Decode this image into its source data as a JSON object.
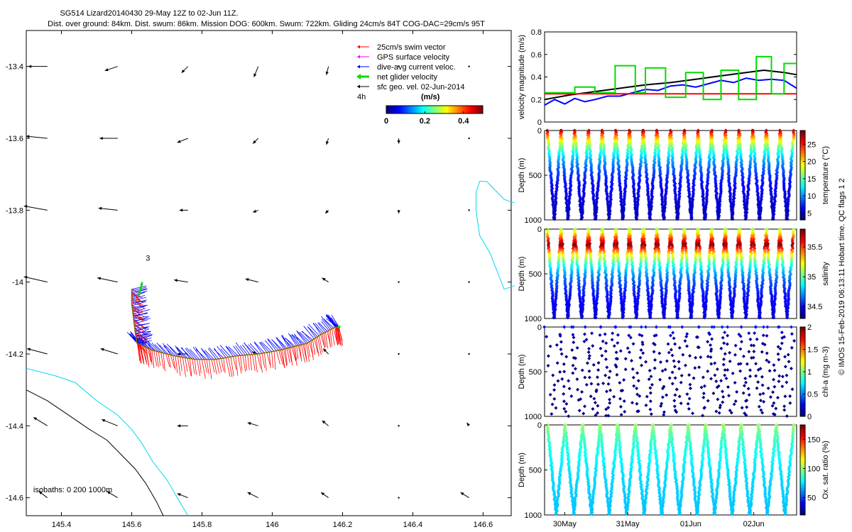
{
  "header": {
    "line1": "SG514 Lizard20140430 29-May 12Z to 02-Jun 11Z.",
    "line2": "Dist. over ground: 84km. Dist. swum: 86km. Mission DOG: 600km. Swum: 722km. Gliding 24cm/s 84T COG-DAC=29cm/s 95T"
  },
  "side_label": "© IMOS 15-Feb-2019 06:13:11 Hobart time. QC flags 1  2",
  "chart_data": [
    {
      "id": "map",
      "type": "scatter",
      "xlim": [
        145.3,
        146.68
      ],
      "ylim": [
        -14.65,
        -13.3
      ],
      "xticks": [
        145.4,
        145.6,
        145.8,
        146,
        146.2,
        146.4,
        146.6
      ],
      "xtick_labels": [
        "145.4",
        "145.6",
        "145.8",
        "146",
        "146.2",
        "146.4",
        "146.6"
      ],
      "yticks": [
        -13.4,
        -13.6,
        -13.8,
        -14,
        -14.2,
        -14.4,
        -14.6
      ],
      "ytick_labels": [
        "-13.4",
        "-13.6",
        "-13.8",
        "-14",
        "-14.2",
        "-14.4",
        "-14.6"
      ],
      "legend": {
        "placement": "top-right",
        "entries": [
          {
            "label": "25cm/s swim vector",
            "color": "#ff0000"
          },
          {
            "label": "GPS surface velocity",
            "color": "#ff00ff"
          },
          {
            "label": "dive-avg current veloc.",
            "color": "#0000ff"
          },
          {
            "label": "net glider velocity",
            "color": "#00dd00"
          },
          {
            "label": "sfc geo. vel. 02-Jun-2014",
            "color": "#000000"
          }
        ]
      },
      "colorbar": {
        "label": "(m/s)",
        "side_text": "4h",
        "ticks": [
          0,
          0.2,
          0.4
        ],
        "tick_labels": [
          "0",
          "0.2",
          "0.4"
        ],
        "range": [
          0,
          0.5
        ]
      },
      "annotations": [
        {
          "text": "3",
          "lon": 145.64,
          "lat": -13.94
        },
        {
          "text": "isobaths: 0   200  1000m",
          "lon": 145.32,
          "lat": -14.585
        }
      ],
      "track": [
        [
          145.6,
          -14.02
        ],
        [
          145.6,
          -14.06
        ],
        [
          145.605,
          -14.1
        ],
        [
          145.61,
          -14.14
        ],
        [
          145.615,
          -14.17
        ],
        [
          145.625,
          -14.175
        ],
        [
          145.66,
          -14.19
        ],
        [
          145.72,
          -14.205
        ],
        [
          145.78,
          -14.215
        ],
        [
          145.84,
          -14.215
        ],
        [
          145.9,
          -14.205
        ],
        [
          145.96,
          -14.2
        ],
        [
          146.02,
          -14.19
        ],
        [
          146.06,
          -14.18
        ],
        [
          146.1,
          -14.17
        ],
        [
          146.14,
          -14.145
        ],
        [
          146.18,
          -14.125
        ],
        [
          146.19,
          -14.125
        ]
      ],
      "isobath_0": [
        [
          145.3,
          -14.24
        ],
        [
          145.38,
          -14.26
        ],
        [
          145.44,
          -14.28
        ],
        [
          145.5,
          -14.33
        ],
        [
          145.56,
          -14.37
        ],
        [
          145.6,
          -14.41
        ],
        [
          145.63,
          -14.45
        ],
        [
          145.66,
          -14.5
        ],
        [
          145.7,
          -14.55
        ],
        [
          145.73,
          -14.6
        ],
        [
          145.76,
          -14.65
        ]
      ],
      "isobath_1000": [
        [
          145.3,
          -14.3
        ],
        [
          145.36,
          -14.33
        ],
        [
          145.42,
          -14.37
        ],
        [
          145.48,
          -14.41
        ],
        [
          145.53,
          -14.44
        ],
        [
          145.57,
          -14.48
        ],
        [
          145.61,
          -14.52
        ],
        [
          145.64,
          -14.56
        ],
        [
          145.67,
          -14.61
        ],
        [
          145.69,
          -14.65
        ]
      ],
      "coast": [
        [
          146.69,
          -13.78
        ],
        [
          146.66,
          -13.77
        ],
        [
          146.63,
          -13.74
        ],
        [
          146.61,
          -13.72
        ],
        [
          146.59,
          -13.72
        ],
        [
          146.58,
          -13.75
        ],
        [
          146.58,
          -13.8
        ],
        [
          146.59,
          -13.87
        ],
        [
          146.62,
          -13.92
        ],
        [
          146.64,
          -13.97
        ],
        [
          146.66,
          -14.02
        ],
        [
          146.69,
          -14.01
        ]
      ],
      "currents": [
        {
          "lon": 145.36,
          "lat": -13.4,
          "u": -0.18,
          "v": 0.0
        },
        {
          "lon": 145.56,
          "lat": -13.4,
          "u": -0.12,
          "v": -0.04
        },
        {
          "lon": 145.76,
          "lat": -13.4,
          "u": -0.06,
          "v": -0.06
        },
        {
          "lon": 145.96,
          "lat": -13.4,
          "u": -0.04,
          "v": -0.1
        },
        {
          "lon": 146.16,
          "lat": -13.4,
          "u": -0.02,
          "v": -0.08
        },
        {
          "lon": 146.36,
          "lat": -13.4,
          "u": 0.0,
          "v": 0.0
        },
        {
          "lon": 146.56,
          "lat": -13.4,
          "u": 0.0,
          "v": 0.0
        },
        {
          "lon": 145.36,
          "lat": -13.6,
          "u": -0.2,
          "v": 0.02
        },
        {
          "lon": 145.56,
          "lat": -13.6,
          "u": -0.17,
          "v": 0.0
        },
        {
          "lon": 145.76,
          "lat": -13.6,
          "u": -0.1,
          "v": -0.04
        },
        {
          "lon": 145.96,
          "lat": -13.6,
          "u": -0.05,
          "v": -0.05
        },
        {
          "lon": 146.16,
          "lat": -13.6,
          "u": -0.02,
          "v": -0.06
        },
        {
          "lon": 146.36,
          "lat": -13.6,
          "u": 0.0,
          "v": -0.05
        },
        {
          "lon": 146.56,
          "lat": -13.6,
          "u": 0.0,
          "v": 0.0
        },
        {
          "lon": 145.36,
          "lat": -13.8,
          "u": -0.22,
          "v": 0.04
        },
        {
          "lon": 145.56,
          "lat": -13.8,
          "u": -0.18,
          "v": 0.02
        },
        {
          "lon": 145.76,
          "lat": -13.8,
          "u": -0.08,
          "v": 0.0
        },
        {
          "lon": 145.96,
          "lat": -13.8,
          "u": -0.05,
          "v": -0.02
        },
        {
          "lon": 146.16,
          "lat": -13.8,
          "u": -0.03,
          "v": -0.03
        },
        {
          "lon": 146.36,
          "lat": -13.8,
          "u": 0.0,
          "v": -0.03
        },
        {
          "lon": 146.56,
          "lat": -13.8,
          "u": 0.0,
          "v": 0.0
        },
        {
          "lon": 145.36,
          "lat": -14.0,
          "u": -0.22,
          "v": 0.05
        },
        {
          "lon": 145.56,
          "lat": -14.0,
          "u": -0.19,
          "v": 0.04
        },
        {
          "lon": 145.76,
          "lat": -14.0,
          "u": -0.13,
          "v": 0.02
        },
        {
          "lon": 145.96,
          "lat": -14.0,
          "u": -0.12,
          "v": 0.03
        },
        {
          "lon": 146.16,
          "lat": -14.0,
          "u": -0.06,
          "v": 0.04
        },
        {
          "lon": 146.36,
          "lat": -14.0,
          "u": 0.0,
          "v": 0.0
        },
        {
          "lon": 146.56,
          "lat": -14.0,
          "u": 0.0,
          "v": 0.0
        },
        {
          "lon": 145.36,
          "lat": -14.2,
          "u": -0.19,
          "v": 0.05
        },
        {
          "lon": 145.56,
          "lat": -14.2,
          "u": -0.16,
          "v": 0.05
        },
        {
          "lon": 145.76,
          "lat": -14.2,
          "u": -0.1,
          "v": 0.0
        },
        {
          "lon": 145.96,
          "lat": -14.2,
          "u": -0.06,
          "v": 0.02
        },
        {
          "lon": 146.16,
          "lat": -14.2,
          "u": -0.05,
          "v": 0.05
        },
        {
          "lon": 146.36,
          "lat": -14.2,
          "u": 0.0,
          "v": 0.0
        },
        {
          "lon": 146.56,
          "lat": -14.2,
          "u": 0.0,
          "v": 0.0
        },
        {
          "lon": 145.36,
          "lat": -14.4,
          "u": -0.13,
          "v": 0.08
        },
        {
          "lon": 145.56,
          "lat": -14.4,
          "u": -0.15,
          "v": 0.06
        },
        {
          "lon": 145.76,
          "lat": -14.4,
          "u": -0.1,
          "v": 0.0
        },
        {
          "lon": 145.96,
          "lat": -14.4,
          "u": -0.1,
          "v": 0.03
        },
        {
          "lon": 146.16,
          "lat": -14.4,
          "u": -0.06,
          "v": 0.05
        },
        {
          "lon": 146.36,
          "lat": -14.4,
          "u": 0.0,
          "v": 0.0
        },
        {
          "lon": 146.56,
          "lat": -14.4,
          "u": -0.02,
          "v": 0.03
        },
        {
          "lon": 145.36,
          "lat": -14.6,
          "u": -0.08,
          "v": 0.06
        },
        {
          "lon": 145.56,
          "lat": -14.6,
          "u": -0.1,
          "v": 0.06
        },
        {
          "lon": 145.76,
          "lat": -14.6,
          "u": -0.1,
          "v": 0.04
        },
        {
          "lon": 145.96,
          "lat": -14.6,
          "u": -0.1,
          "v": 0.05
        },
        {
          "lon": 146.16,
          "lat": -14.6,
          "u": -0.07,
          "v": 0.05
        },
        {
          "lon": 146.36,
          "lat": -14.6,
          "u": 0.0,
          "v": 0.0
        },
        {
          "lon": 146.56,
          "lat": -14.6,
          "u": -0.08,
          "v": 0.05
        }
      ]
    },
    {
      "id": "velocity",
      "type": "line",
      "ylabel": "velocity magnitude (m/s)",
      "xlim": [
        0,
        100
      ],
      "ylim": [
        0,
        0.8
      ],
      "yticks": [
        0,
        0.2,
        0.4,
        0.6,
        0.8
      ],
      "ytick_labels": [
        "0",
        "0.2",
        "0.4",
        "0.6",
        "0.8"
      ],
      "series": [
        {
          "name": "sfc geo. vel.",
          "color": "#000000",
          "x": [
            0,
            10,
            20,
            30,
            40,
            50,
            60,
            70,
            80,
            87,
            95,
            100
          ],
          "values": [
            0.2,
            0.24,
            0.27,
            0.3,
            0.33,
            0.35,
            0.38,
            0.41,
            0.44,
            0.46,
            0.44,
            0.42
          ]
        },
        {
          "name": "dive-avg current",
          "color": "#0000ff",
          "x": [
            0,
            4,
            8,
            12,
            16,
            20,
            25,
            30,
            35,
            40,
            45,
            50,
            55,
            60,
            65,
            70,
            75,
            80,
            85,
            90,
            95,
            100
          ],
          "values": [
            0.15,
            0.2,
            0.16,
            0.21,
            0.18,
            0.2,
            0.23,
            0.23,
            0.26,
            0.29,
            0.28,
            0.32,
            0.33,
            0.31,
            0.34,
            0.37,
            0.35,
            0.39,
            0.37,
            0.38,
            0.37,
            0.3
          ]
        },
        {
          "name": "swim",
          "color": "#ff0000",
          "x": [
            0,
            100
          ],
          "values": [
            0.25,
            0.25
          ]
        },
        {
          "name": "net glider",
          "color": "#00dd00",
          "x": [
            0,
            12,
            12,
            20,
            20,
            28,
            28,
            36,
            36,
            40,
            40,
            48,
            48,
            56,
            56,
            63,
            63,
            70,
            70,
            77,
            77,
            84,
            84,
            90,
            90,
            95,
            95,
            100
          ],
          "values": [
            0.26,
            0.26,
            0.31,
            0.31,
            0.26,
            0.26,
            0.5,
            0.5,
            0.26,
            0.26,
            0.48,
            0.48,
            0.22,
            0.22,
            0.44,
            0.44,
            0.2,
            0.2,
            0.46,
            0.46,
            0.2,
            0.2,
            0.58,
            0.58,
            0.25,
            0.25,
            0.52,
            0.52
          ]
        }
      ]
    },
    {
      "id": "temperature",
      "type": "scatter",
      "ylabel": "Depth (m)",
      "colorbar_label": "temperature (°C)",
      "ylim": [
        1000,
        0
      ],
      "yticks": [
        0,
        500,
        1000
      ],
      "ytick_labels": [
        "0",
        "500",
        "1000"
      ],
      "cticks": [
        5,
        10,
        15,
        20,
        25
      ],
      "ctick_labels": [
        "5",
        "10",
        "15",
        "20",
        "25"
      ],
      "crange": [
        3,
        29
      ],
      "profile": {
        "n_dives": 18,
        "bottom_depth": 1000,
        "surface_value": 28,
        "deep_value": 4,
        "decay": 260,
        "continuous": true,
        "spacing": 1
      }
    },
    {
      "id": "salinity",
      "type": "scatter",
      "ylabel": "Depth (m)",
      "colorbar_label": "salinity",
      "ylim": [
        1000,
        0
      ],
      "yticks": [
        0,
        500,
        1000
      ],
      "ytick_labels": [
        "0",
        "500",
        "1000"
      ],
      "cticks": [
        34.5,
        35,
        35.5
      ],
      "ctick_labels": [
        "34.5",
        "35",
        "35.5"
      ],
      "crange": [
        34.3,
        35.8
      ],
      "profile": {
        "n_dives": 18,
        "bottom_depth": 1000,
        "surface_value": 35.1,
        "max_value": 35.8,
        "max_depth": 180,
        "deep_value": 34.4,
        "continuous": true,
        "spacing": 1
      }
    },
    {
      "id": "chla",
      "type": "scatter",
      "ylabel": "Depth (m)",
      "colorbar_label": "chl-a (mg m-3)",
      "ylim": [
        1000,
        0
      ],
      "yticks": [
        0,
        500,
        1000
      ],
      "ytick_labels": [
        "0",
        "500",
        "1000"
      ],
      "cticks": [
        0,
        0.5,
        1,
        1.5,
        2
      ],
      "ctick_labels": [
        "0",
        "0.5",
        "1",
        "1.5",
        "2"
      ],
      "crange": [
        0,
        2
      ],
      "profile": {
        "n_dives": 18,
        "bottom_depth": 1000,
        "surface_value": 0.3,
        "deep_value": 0.02,
        "decay": 80,
        "continuous": false,
        "spacing": 9
      }
    },
    {
      "id": "oxygen",
      "type": "scatter",
      "ylabel": "Depth (m)",
      "colorbar_label": "Ox. sat. ratio (%)",
      "ylim": [
        1000,
        0
      ],
      "yticks": [
        0,
        500,
        1000
      ],
      "ytick_labels": [
        "0",
        "500",
        "1000"
      ],
      "cticks": [
        50,
        100,
        150
      ],
      "ctick_labels": [
        "50",
        "100",
        "150"
      ],
      "crange": [
        20,
        175
      ],
      "xticks": [
        8,
        33,
        58,
        83
      ],
      "xtick_labels": [
        "30May",
        "31May",
        "01Jun",
        "02Jun"
      ],
      "profile": {
        "n_dives": 14,
        "bottom_depth": 1000,
        "surface_value": 102,
        "deep_value": 68,
        "decay": 300,
        "continuous": true,
        "spacing": 1
      }
    }
  ]
}
